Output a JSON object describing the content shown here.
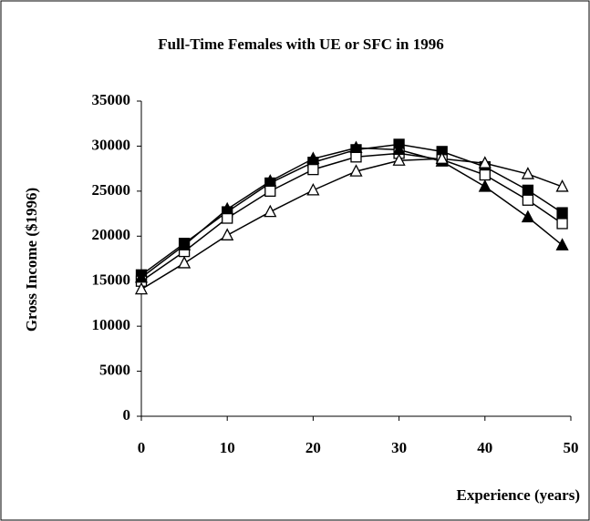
{
  "chart_data": {
    "type": "line",
    "title": "Full-Time Females with UE or SFC in 1996",
    "x_label": "Experience (years)",
    "y_label": "Gross Income ($1996)",
    "x": [
      0,
      5,
      10,
      15,
      20,
      25,
      30,
      35,
      40,
      45,
      49
    ],
    "series": [
      {
        "color": "#000000",
        "marker": "square",
        "filled": true,
        "values": [
          15700,
          19200,
          22700,
          25900,
          28200,
          29600,
          30200,
          29400,
          27700,
          25100,
          22600
        ]
      },
      {
        "color": "#000000",
        "marker": "square",
        "filled": false,
        "values": [
          15000,
          18300,
          22000,
          25000,
          27400,
          28800,
          29200,
          28500,
          26800,
          24000,
          21400
        ]
      },
      {
        "color": "#000000",
        "marker": "triangle",
        "filled": true,
        "values": [
          15400,
          19000,
          23000,
          26100,
          28600,
          29800,
          29600,
          28300,
          25500,
          22100,
          19000
        ]
      },
      {
        "color": "#000000",
        "marker": "triangle",
        "filled": false,
        "values": [
          14100,
          17000,
          20100,
          22700,
          25100,
          27200,
          28400,
          28600,
          28100,
          26900,
          25500
        ]
      }
    ],
    "xlim": [
      0,
      50
    ],
    "xticks": [
      0,
      10,
      20,
      30,
      40,
      50
    ],
    "ylim": [
      0,
      35000
    ],
    "yticks": [
      0,
      5000,
      10000,
      15000,
      20000,
      25000,
      30000,
      35000
    ],
    "grid": false
  }
}
